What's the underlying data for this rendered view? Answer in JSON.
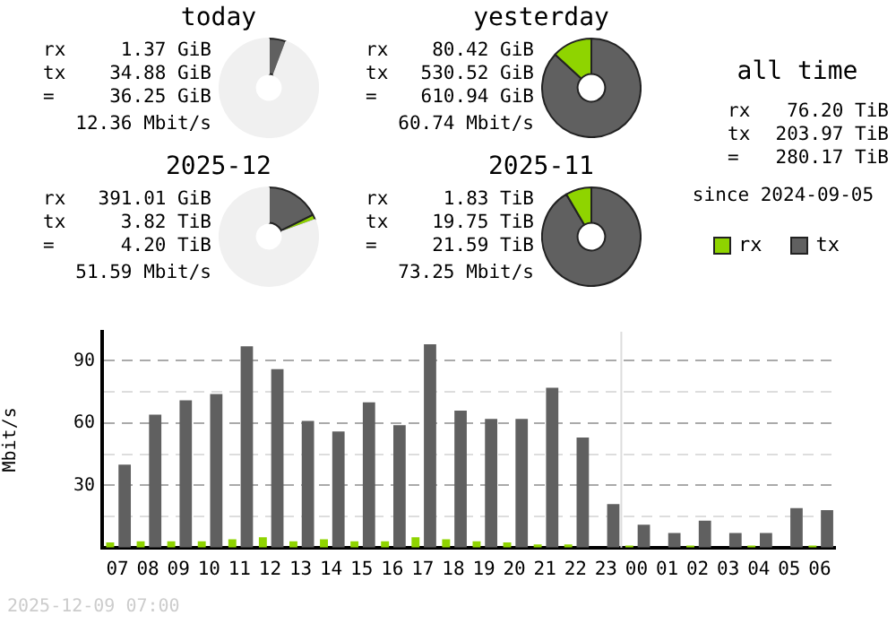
{
  "chart_data": [
    {
      "type": "donut",
      "title": "today",
      "categories": [
        null,
        null,
        null
      ],
      "values": [
        5.71,
        null,
        94.07
      ],
      "colors": [
        "#606060",
        "#8fd400",
        "#f0f0f0"
      ],
      "annotations": [
        "rx 1.37 GiB",
        "tx 34.88 GiB",
        "= 36.25 GiB",
        "12.36 Mbit/s"
      ]
    },
    {
      "type": "donut",
      "title": "yesterday",
      "categories": [
        null,
        null,
        null
      ],
      "values": [
        86.84,
        13.16,
        0
      ],
      "colors": [
        "#606060",
        "#8fd400",
        "#f0f0f0"
      ],
      "annotations": [
        "rx 80.42 GiB",
        "tx 530.52 GiB",
        "= 610.94 GiB",
        "60.74 Mbit/s"
      ]
    },
    {
      "type": "other",
      "title": "all time",
      "annotations": [
        "rx 76.20 TiB",
        "tx 203.97 TiB",
        "= 280.17 TiB",
        "since 2024-09-05"
      ]
    },
    {
      "type": "donut",
      "title": "2025-12",
      "categories": [
        null,
        null,
        null
      ],
      "values": [
        17.69,
        1.77,
        80.54
      ],
      "colors": [
        "#606060",
        "#8fd400",
        "#f0f0f0"
      ],
      "annotations": [
        "rx 391.01 GiB",
        "tx 3.82 TiB",
        "= 4.20 TiB",
        "51.59 Mbit/s"
      ]
    },
    {
      "type": "donut",
      "title": "2025-11",
      "categories": [
        null,
        null,
        null
      ],
      "values": [
        91.52,
        8.48,
        0
      ],
      "colors": [
        "#606060",
        "#8fd400",
        "#f0f0f0"
      ],
      "annotations": [
        "rx 1.83 TiB",
        "tx 19.75 TiB",
        "= 21.59 TiB",
        "73.25 Mbit/s"
      ]
    },
    {
      "type": "bar",
      "ylabel": "Mbit/s",
      "categories": [
        "07",
        "08",
        "09",
        "10",
        "11",
        "12",
        "13",
        "14",
        "15",
        "16",
        "17",
        "18",
        "19",
        "20",
        "21",
        "22",
        "23",
        "00",
        "01",
        "02",
        "03",
        "04",
        "05",
        "06"
      ],
      "series": [
        {
          "name": "rx",
          "color": "#8fd400",
          "values": [
            2.5,
            3,
            3,
            3,
            4,
            5,
            3,
            4,
            3,
            3,
            5,
            4,
            3,
            2.5,
            1.5,
            1.5,
            0,
            1,
            0,
            1,
            0,
            1,
            0,
            1
          ]
        },
        {
          "name": "tx",
          "color": "#606060",
          "values": [
            40,
            64,
            71,
            74,
            97,
            86,
            61,
            56,
            70,
            59,
            98,
            66,
            62,
            62,
            77,
            53,
            21,
            11,
            7,
            13,
            7,
            7,
            19,
            18
          ]
        }
      ],
      "ylim": [
        0,
        104
      ],
      "yticks": [
        {
          "value": 15,
          "label": null
        },
        30,
        {
          "value": 45,
          "label": null
        },
        60,
        {
          "value": 75,
          "label": null
        },
        90
      ],
      "grid": "y",
      "legend": "top right",
      "ref_lines": [
        {
          "axis": "x",
          "value": "00",
          "color": "#dddddd"
        }
      ],
      "annotations": [
        "2025-12-09 07:00"
      ]
    }
  ]
}
